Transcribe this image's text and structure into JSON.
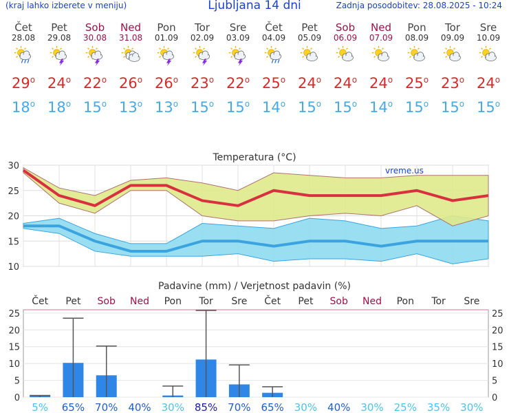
{
  "header": {
    "menu_note": "(kraj lahko izberete v meniju)",
    "title": "Ljubljana 14 dni",
    "updated": "Zadnja posodobitev: 28.08.2025 - 10:24"
  },
  "days": [
    {
      "name": "Čet",
      "date": "28.08",
      "weekend": false,
      "icon": "sun-cloud-rain-icon",
      "tmax": "29",
      "tmin": "18"
    },
    {
      "name": "Pet",
      "date": "29.08",
      "weekend": false,
      "icon": "sun-thunderstorm-icon",
      "tmax": "24",
      "tmin": "18"
    },
    {
      "name": "Sob",
      "date": "30.08",
      "weekend": true,
      "icon": "sun-thunderstorm-icon",
      "tmax": "22",
      "tmin": "15"
    },
    {
      "name": "Ned",
      "date": "31.08",
      "weekend": true,
      "icon": "sun-cloudy-icon",
      "tmax": "26",
      "tmin": "13"
    },
    {
      "name": "Pon",
      "date": "01.09",
      "weekend": false,
      "icon": "sun-thunderstorm-icon",
      "tmax": "26",
      "tmin": "13"
    },
    {
      "name": "Tor",
      "date": "02.09",
      "weekend": false,
      "icon": "sun-thunderstorm-icon",
      "tmax": "23",
      "tmin": "15"
    },
    {
      "name": "Sre",
      "date": "03.09",
      "weekend": false,
      "icon": "sun-thunderstorm-icon",
      "tmax": "22",
      "tmin": "15"
    },
    {
      "name": "Čet",
      "date": "04.09",
      "weekend": false,
      "icon": "sun-cloud-rain-icon",
      "tmax": "25",
      "tmin": "14"
    },
    {
      "name": "Pet",
      "date": "05.09",
      "weekend": false,
      "icon": "partly-cloudy-icon",
      "tmax": "24",
      "tmin": "15"
    },
    {
      "name": "Sob",
      "date": "06.09",
      "weekend": true,
      "icon": "partly-cloudy-icon",
      "tmax": "24",
      "tmin": "15"
    },
    {
      "name": "Ned",
      "date": "07.09",
      "weekend": true,
      "icon": "partly-cloudy-icon",
      "tmax": "24",
      "tmin": "14"
    },
    {
      "name": "Pon",
      "date": "08.09",
      "weekend": false,
      "icon": "partly-cloudy-icon",
      "tmax": "25",
      "tmin": "15"
    },
    {
      "name": "Tor",
      "date": "09.09",
      "weekend": false,
      "icon": "partly-cloudy-icon",
      "tmax": "23",
      "tmin": "15"
    },
    {
      "name": "Sre",
      "date": "10.09",
      "weekend": false,
      "icon": "partly-cloudy-icon",
      "tmax": "24",
      "tmin": "15"
    }
  ],
  "degree_symbol": "o",
  "colors": {
    "accent_blue": "#1a3fd9",
    "weekend": "#a0104a",
    "tmax_text": "#d92a2a",
    "tmin_text": "#46a9e8",
    "tmax_line": "#d93040",
    "tmax_band": "#dfe98a",
    "tmin_line": "#3aa3e0",
    "tmin_band": "#8fdcef",
    "rain_bar": "#2f86e6",
    "prob_low": "#4cc4ee",
    "prob_mid": "#1f5fd0",
    "prob_high": "#1a1aa8"
  },
  "chart_data": [
    {
      "type": "line",
      "title": "Temperatura (°C)",
      "watermark": "vreme.us",
      "ylim": [
        10,
        30
      ],
      "yticks": [
        10,
        15,
        20,
        25,
        30
      ],
      "grid": true,
      "x_points": 14,
      "series": [
        {
          "key": "tmax",
          "values": [
            29,
            24,
            22,
            26,
            26,
            23,
            22,
            25,
            24,
            24,
            24,
            25,
            23,
            24
          ],
          "band_low": [
            28.5,
            22.5,
            20.5,
            25,
            25,
            20,
            19,
            19,
            20,
            20.5,
            20,
            22,
            18,
            20
          ],
          "band_high": [
            29.5,
            25.5,
            24,
            27,
            27.5,
            26.5,
            25,
            28.5,
            28,
            27.5,
            27.5,
            28,
            28,
            28
          ]
        },
        {
          "key": "tmin",
          "values": [
            18,
            18,
            15,
            13,
            13,
            15,
            15,
            14,
            15,
            15,
            14,
            15,
            15,
            15
          ],
          "band_low": [
            17.5,
            16.5,
            13,
            12,
            12,
            12,
            12.5,
            11,
            11.5,
            11.5,
            11,
            12.5,
            10.5,
            11.5
          ],
          "band_high": [
            18.5,
            19.5,
            16.5,
            14.5,
            14.5,
            18.5,
            18,
            17.5,
            19.5,
            19,
            17.5,
            18,
            20,
            19
          ]
        }
      ]
    },
    {
      "type": "bar",
      "title": "Padavine (mm) / Verjetnost padavin (%)",
      "categories": [
        "Čet",
        "Pet",
        "Sob",
        "Ned",
        "Pon",
        "Tor",
        "Sre",
        "Čet",
        "Pet",
        "Sob",
        "Ned",
        "Pon",
        "Tor",
        "Sre"
      ],
      "weekend": [
        false,
        false,
        true,
        true,
        false,
        false,
        false,
        false,
        false,
        true,
        true,
        false,
        false,
        false
      ],
      "values": [
        0.5,
        10.2,
        6.5,
        0,
        0.5,
        11.2,
        3.8,
        1.3,
        0,
        0,
        0,
        0,
        0,
        0
      ],
      "max_values": [
        0.5,
        23.5,
        15.2,
        0,
        3.3,
        25.8,
        9.6,
        3.1,
        0,
        0,
        0,
        0,
        0,
        0
      ],
      "probability": [
        "5%",
        "65%",
        "70%",
        "40%",
        "30%",
        "85%",
        "70%",
        "65%",
        "30%",
        "40%",
        "30%",
        "25%",
        "35%",
        "30%"
      ],
      "probability_level": [
        "low",
        "mid",
        "mid",
        "mid",
        "low",
        "high",
        "mid",
        "mid",
        "low",
        "mid",
        "low",
        "low",
        "low",
        "low"
      ],
      "ylim": [
        0,
        26
      ],
      "yticks": [
        0,
        5,
        10,
        15,
        20,
        25
      ],
      "grid": true
    }
  ]
}
